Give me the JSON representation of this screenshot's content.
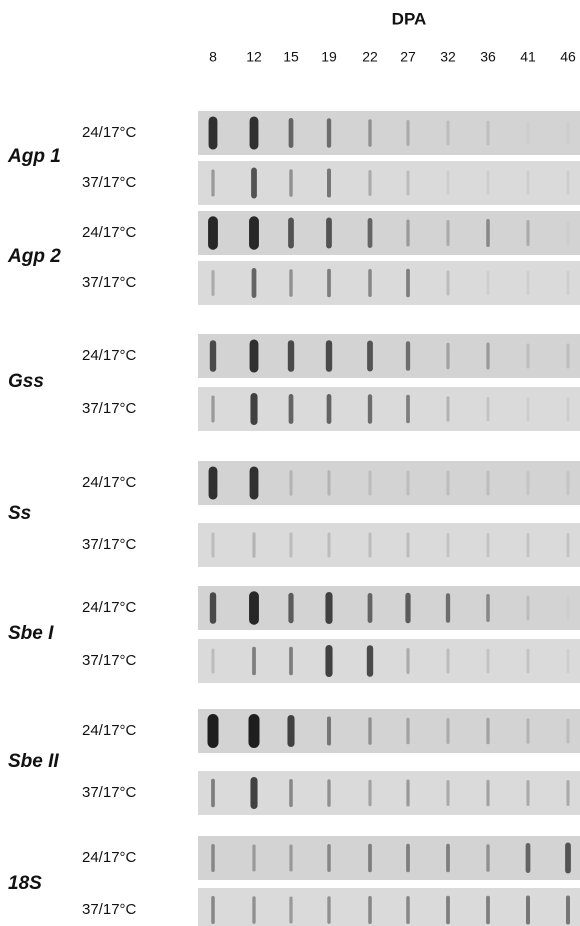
{
  "figure": {
    "title": "DPA",
    "lanes": [
      "8",
      "12",
      "15",
      "19",
      "22",
      "27",
      "32",
      "36",
      "41",
      "46"
    ],
    "genes": [
      {
        "name": "Agp 1",
        "rows": [
          {
            "label": "24/17°C",
            "intensity": [
              0.9,
              0.9,
              0.6,
              0.55,
              0.35,
              0.2,
              0.1,
              0.08,
              0,
              0
            ]
          },
          {
            "label": "37/17°C",
            "intensity": [
              0.3,
              0.7,
              0.35,
              0.5,
              0.2,
              0.1,
              0,
              0,
              0,
              0
            ]
          }
        ]
      },
      {
        "name": "Agp 2",
        "rows": [
          {
            "label": "24/17°C",
            "intensity": [
              0.95,
              0.95,
              0.7,
              0.7,
              0.6,
              0.3,
              0.2,
              0.4,
              0.2,
              0
            ]
          },
          {
            "label": "37/17°C",
            "intensity": [
              0.2,
              0.6,
              0.35,
              0.45,
              0.4,
              0.45,
              0.1,
              0,
              0,
              0
            ]
          }
        ]
      },
      {
        "name": "Gss",
        "rows": [
          {
            "label": "24/17°C",
            "intensity": [
              0.75,
              0.9,
              0.75,
              0.75,
              0.7,
              0.55,
              0.25,
              0.3,
              0.1,
              0.1
            ]
          },
          {
            "label": "37/17°C",
            "intensity": [
              0.3,
              0.8,
              0.6,
              0.6,
              0.55,
              0.45,
              0.15,
              0.05,
              0,
              0
            ]
          }
        ]
      },
      {
        "name": "Ss",
        "rows": [
          {
            "label": "24/17°C",
            "intensity": [
              0.9,
              0.9,
              0.15,
              0.15,
              0.1,
              0.1,
              0.1,
              0.1,
              0.05,
              0.05
            ]
          },
          {
            "label": "37/17°C",
            "intensity": [
              0.1,
              0.15,
              0.1,
              0.1,
              0.1,
              0.1,
              0.05,
              0.05,
              0.05,
              0.05
            ]
          }
        ]
      },
      {
        "name": "Sbe I",
        "rows": [
          {
            "label": "24/17°C",
            "intensity": [
              0.75,
              0.95,
              0.65,
              0.8,
              0.6,
              0.65,
              0.55,
              0.4,
              0.1,
              0
            ]
          },
          {
            "label": "37/17°C",
            "intensity": [
              0.1,
              0.45,
              0.45,
              0.8,
              0.75,
              0.2,
              0.1,
              0.05,
              0.05,
              0
            ]
          }
        ]
      },
      {
        "name": "Sbe II",
        "rows": [
          {
            "label": "24/17°C",
            "intensity": [
              1,
              1,
              0.8,
              0.5,
              0.35,
              0.25,
              0.2,
              0.25,
              0.15,
              0.1
            ]
          },
          {
            "label": "37/17°C",
            "intensity": [
              0.45,
              0.8,
              0.4,
              0.35,
              0.25,
              0.3,
              0.2,
              0.25,
              0.2,
              0.2
            ]
          }
        ]
      },
      {
        "name": "18S",
        "rows": [
          {
            "label": "24/17°C",
            "intensity": [
              0.4,
              0.3,
              0.3,
              0.4,
              0.45,
              0.45,
              0.45,
              0.35,
              0.6,
              0.7
            ]
          },
          {
            "label": "37/17°C",
            "intensity": [
              0.4,
              0.35,
              0.3,
              0.35,
              0.4,
              0.4,
              0.45,
              0.45,
              0.5,
              0.5
            ]
          }
        ]
      }
    ]
  }
}
